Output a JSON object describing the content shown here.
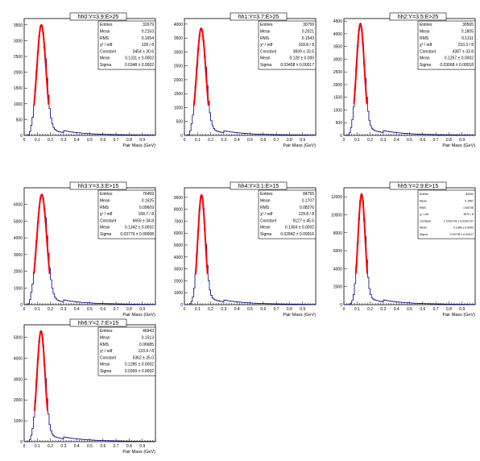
{
  "panels_common": {
    "xlabel": "Pair Mass (GeV)",
    "x_tick_labels": [
      "0",
      "0.1",
      "0.2",
      "0.3",
      "0.4",
      "0.5",
      "0.6",
      "0.7",
      "0.8",
      "0.9"
    ],
    "histogram_color": "#00008b",
    "fit_color": "#ff0000"
  },
  "chart_data": [
    {
      "type": "bar",
      "title": "hh0:Y=3.9:E>25",
      "xlabel": "Pair Mass (GeV)",
      "xlim": [
        0,
        1.0
      ],
      "ylim": [
        0,
        3700
      ],
      "yticks": [
        0,
        500,
        1000,
        1500,
        2000,
        2500,
        3000,
        3500
      ],
      "y_tick_labels": [
        "0",
        "500",
        "1000",
        "1500",
        "2000",
        "2500",
        "3000",
        "3500"
      ],
      "peak": 3500,
      "stats": [
        {
          "label": "Entries",
          "value": "32679"
        },
        {
          "label": "Mean",
          "value": "0.2163"
        },
        {
          "label": "RMS",
          "value": "0.1654"
        },
        {
          "label": "χ² / ndf",
          "value": "128 / 8"
        },
        {
          "label": "Constant",
          "value": "3454 ± 30.6"
        },
        {
          "label": "Mean",
          "value": "0.1311 ± 0.0002"
        },
        {
          "label": "Sigma",
          "value": "0.0348 ± 0.0002"
        }
      ]
    },
    {
      "type": "bar",
      "title": "hh1:Y=3.7:E>25",
      "xlabel": "Pair Mass (GeV)",
      "xlim": [
        0,
        1.0
      ],
      "ylim": [
        0,
        4200
      ],
      "yticks": [
        0,
        500,
        1000,
        1500,
        2000,
        2500,
        3000,
        3500,
        4000
      ],
      "y_tick_labels": [
        "0",
        "500",
        "1000",
        "1500",
        "2000",
        "2500",
        "3000",
        "3500",
        "4000"
      ],
      "peak": 3850,
      "stats": [
        {
          "label": "Entries",
          "value": "30759"
        },
        {
          "label": "Mean",
          "value": "0.2021"
        },
        {
          "label": "RMS",
          "value": "0.1543"
        },
        {
          "label": "χ² / ndf",
          "value": "169.8 / 8"
        },
        {
          "label": "Constant",
          "value": "3839 ± 33.5"
        },
        {
          "label": "Mean",
          "value": "0.128 ± 0.000"
        },
        {
          "label": "Sigma",
          "value": "0.03458 ± 0.00017"
        }
      ]
    },
    {
      "type": "bar",
      "title": "hh2:Y=3.5:E>25",
      "xlabel": "Pair Mass (GeV)",
      "xlim": [
        0,
        1.0
      ],
      "ylim": [
        0,
        4600
      ],
      "yticks": [
        0,
        500,
        1000,
        1500,
        2000,
        2500,
        3000,
        3500,
        4000,
        4500
      ],
      "y_tick_labels": [
        "0",
        "500",
        "1000",
        "1500",
        "2000",
        "2500",
        "3000",
        "3500",
        "4000",
        "4500"
      ],
      "peak": 4400,
      "stats": [
        {
          "label": "Entries",
          "value": "39565"
        },
        {
          "label": "Mean",
          "value": "0.1805"
        },
        {
          "label": "RMS",
          "value": "0.1311"
        },
        {
          "label": "χ² / ndf",
          "value": "210.3 / 8"
        },
        {
          "label": "Constant",
          "value": "4387 ± 33.8"
        },
        {
          "label": "Mean",
          "value": "0.1257 ± 0.0002"
        },
        {
          "label": "Sigma",
          "value": "0.03068 ± 0.00018"
        }
      ]
    },
    {
      "type": "bar",
      "title": "hh3:Y=3.3:E>15",
      "xlabel": "Pair Mass (GeV)",
      "xlim": [
        0,
        1.0
      ],
      "ylim": [
        0,
        7000
      ],
      "yticks": [
        0,
        1000,
        2000,
        3000,
        4000,
        5000,
        6000
      ],
      "y_tick_labels": [
        "0",
        "1000",
        "2000",
        "3000",
        "4000",
        "5000",
        "6000"
      ],
      "peak": 6600,
      "stats": [
        {
          "label": "Entries",
          "value": "76459"
        },
        {
          "label": "Mean",
          "value": "0.1625"
        },
        {
          "label": "RMS",
          "value": "0.09609"
        },
        {
          "label": "χ² / ndf",
          "value": "168.7 / 8"
        },
        {
          "label": "Constant",
          "value": "6655 ± 34.8"
        },
        {
          "label": "Mean",
          "value": "0.1342 ± 0.0002"
        },
        {
          "label": "Sigma",
          "value": "0.03779 ± 0.00008"
        }
      ]
    },
    {
      "type": "bar",
      "title": "hh4:Y=3.1:E>15",
      "xlabel": "Pair Mass (GeV)",
      "xlim": [
        0,
        1.0
      ],
      "ylim": [
        0,
        9800
      ],
      "yticks": [
        0,
        1000,
        2000,
        3000,
        4000,
        5000,
        6000,
        7000,
        8000,
        9000
      ],
      "y_tick_labels": [
        "0",
        "1000",
        "2000",
        "3000",
        "4000",
        "5000",
        "6000",
        "7000",
        "8000",
        "9000"
      ],
      "peak": 9200,
      "stats": [
        {
          "label": "Entries",
          "value": "84755"
        },
        {
          "label": "Mean",
          "value": "0.1707"
        },
        {
          "label": "RMS",
          "value": "0.08276"
        },
        {
          "label": "χ² / ndf",
          "value": "129.8 / 8"
        },
        {
          "label": "Constant",
          "value": "9127 ± 45.5"
        },
        {
          "label": "Mean",
          "value": "0.1304 ± 0.0002"
        },
        {
          "label": "Sigma",
          "value": "0.02842 ± 0.00016"
        }
      ]
    },
    {
      "type": "bar",
      "title": "hh5:Y=2.9:E>15",
      "xlabel": "Pair Mass (GeV)",
      "xlim": [
        0,
        1.0
      ],
      "ylim": [
        0,
        13000
      ],
      "yticks": [
        0,
        2000,
        4000,
        6000,
        8000,
        10000,
        12000
      ],
      "y_tick_labels": [
        "0",
        "2000",
        "4000",
        "6000",
        "8000",
        "10000",
        "12000"
      ],
      "peak": 12300,
      "stats": [
        {
          "label": "Entries",
          "value": "84392"
        },
        {
          "label": "Mean",
          "value": "0.1567"
        },
        {
          "label": "RMS",
          "value": "0.06708"
        },
        {
          "label": "χ² / ndf",
          "value": "3572 / 8"
        },
        {
          "label": "Constant",
          "value": "1.222e+04 ± 9.232e+01"
        },
        {
          "label": "Mean",
          "value": "0.1348 ± 0.0003"
        },
        {
          "label": "Sigma",
          "value": "0.02735 ± 0.00017"
        }
      ]
    },
    {
      "type": "bar",
      "title": "hh6:Y=2.7:E>15",
      "xlabel": "Pair Mass (GeV)",
      "xlim": [
        0,
        1.0
      ],
      "ylim": [
        0,
        5600
      ],
      "yticks": [
        0,
        1000,
        2000,
        3000,
        4000,
        5000
      ],
      "y_tick_labels": [
        "0",
        "1000",
        "2000",
        "3000",
        "4000",
        "5000"
      ],
      "peak": 5300,
      "stats": [
        {
          "label": "Entries",
          "value": "46943"
        },
        {
          "label": "Mean",
          "value": "0.1513"
        },
        {
          "label": "RMS",
          "value": "0.06685"
        },
        {
          "label": "χ² / ndf",
          "value": "133.9 / 8"
        },
        {
          "label": "Constant",
          "value": "5362 ± 35.0"
        },
        {
          "label": "Mean",
          "value": "0.1285 ± 0.0002"
        },
        {
          "label": "Sigma",
          "value": "0.0309 ± 0.0002"
        }
      ]
    }
  ]
}
